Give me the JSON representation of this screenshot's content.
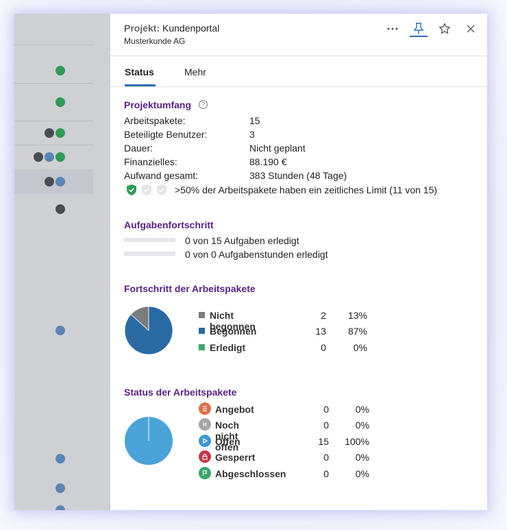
{
  "header": {
    "project_label": "Projekt:",
    "project_name": "Kundenportal",
    "customer": "Musterkunde AG",
    "more_icon": "more-horizontal-icon",
    "pin_icon": "pin-icon",
    "star_icon": "star-icon",
    "close_icon": "close-icon"
  },
  "tabs": [
    {
      "label": "Status",
      "active": true
    },
    {
      "label": "Mehr",
      "active": false
    }
  ],
  "scope": {
    "title": "Projektumfang",
    "help_icon": "help-icon",
    "rows": [
      {
        "label": "Arbeitspakete:",
        "value": "15"
      },
      {
        "label": "Beteiligte Benutzer:",
        "value": "3"
      },
      {
        "label": "Dauer:",
        "value": "Nicht geplant"
      },
      {
        "label": "Finanzielles:",
        "value": "88.190 €"
      },
      {
        "label": "Aufwand gesamt:",
        "value": "383 Stunden (48 Tage)"
      }
    ],
    "limit_text": ">50% der Arbeitspakete haben ein zeitliches Limit (11 von 15)",
    "shield_levels": 3,
    "shield_filled": 1,
    "shield_color": "#2e9b55"
  },
  "task_progress": {
    "title": "Aufgabenfortschritt",
    "rows": [
      {
        "text": "0 von 15 Aufgaben erledigt",
        "progress": 0
      },
      {
        "text": "0 von 0 Aufgabenstunden erledigt",
        "progress": 0
      }
    ]
  },
  "package_progress": {
    "title": "Fortschritt der Arbeitspakete",
    "legend": [
      {
        "label": "Nicht begonnen",
        "count": "2",
        "pct": "13%",
        "color": "#7c7c7c"
      },
      {
        "label": "Begonnen",
        "count": "13",
        "pct": "87%",
        "color": "#2a6aa3"
      },
      {
        "label": "Erledigt",
        "count": "0",
        "pct": "0%",
        "color": "#3aa66a"
      }
    ]
  },
  "package_status": {
    "title": "Status der Arbeitspakete",
    "legend": [
      {
        "label": "Angebot",
        "count": "0",
        "pct": "0%",
        "color": "#e07048",
        "icon": "list-icon"
      },
      {
        "label": "Noch nicht offen",
        "count": "0",
        "pct": "0%",
        "color": "#a6a6a6",
        "icon": "pause-icon"
      },
      {
        "label": "Offen",
        "count": "15",
        "pct": "100%",
        "color": "#3f97d0",
        "icon": "play-icon"
      },
      {
        "label": "Gesperrt",
        "count": "0",
        "pct": "0%",
        "color": "#c5364a",
        "icon": "lock-icon"
      },
      {
        "label": "Abgeschlossen",
        "count": "0",
        "pct": "0%",
        "color": "#3aa66a",
        "icon": "flag-icon"
      }
    ]
  },
  "chart_data": [
    {
      "type": "pie",
      "categories": [
        "Nicht begonnen",
        "Begonnen",
        "Erledigt"
      ],
      "values": [
        2,
        13,
        0
      ],
      "colors": [
        "#7c7c7c",
        "#2a6aa3",
        "#3aa66a"
      ]
    },
    {
      "type": "pie",
      "categories": [
        "Angebot",
        "Noch nicht offen",
        "Offen",
        "Gesperrt",
        "Abgeschlossen"
      ],
      "values": [
        0,
        0,
        15,
        0,
        0
      ],
      "colors": [
        "#e07048",
        "#a6a6a6",
        "#4aa3d8",
        "#c5364a",
        "#3aa66a"
      ]
    }
  ]
}
